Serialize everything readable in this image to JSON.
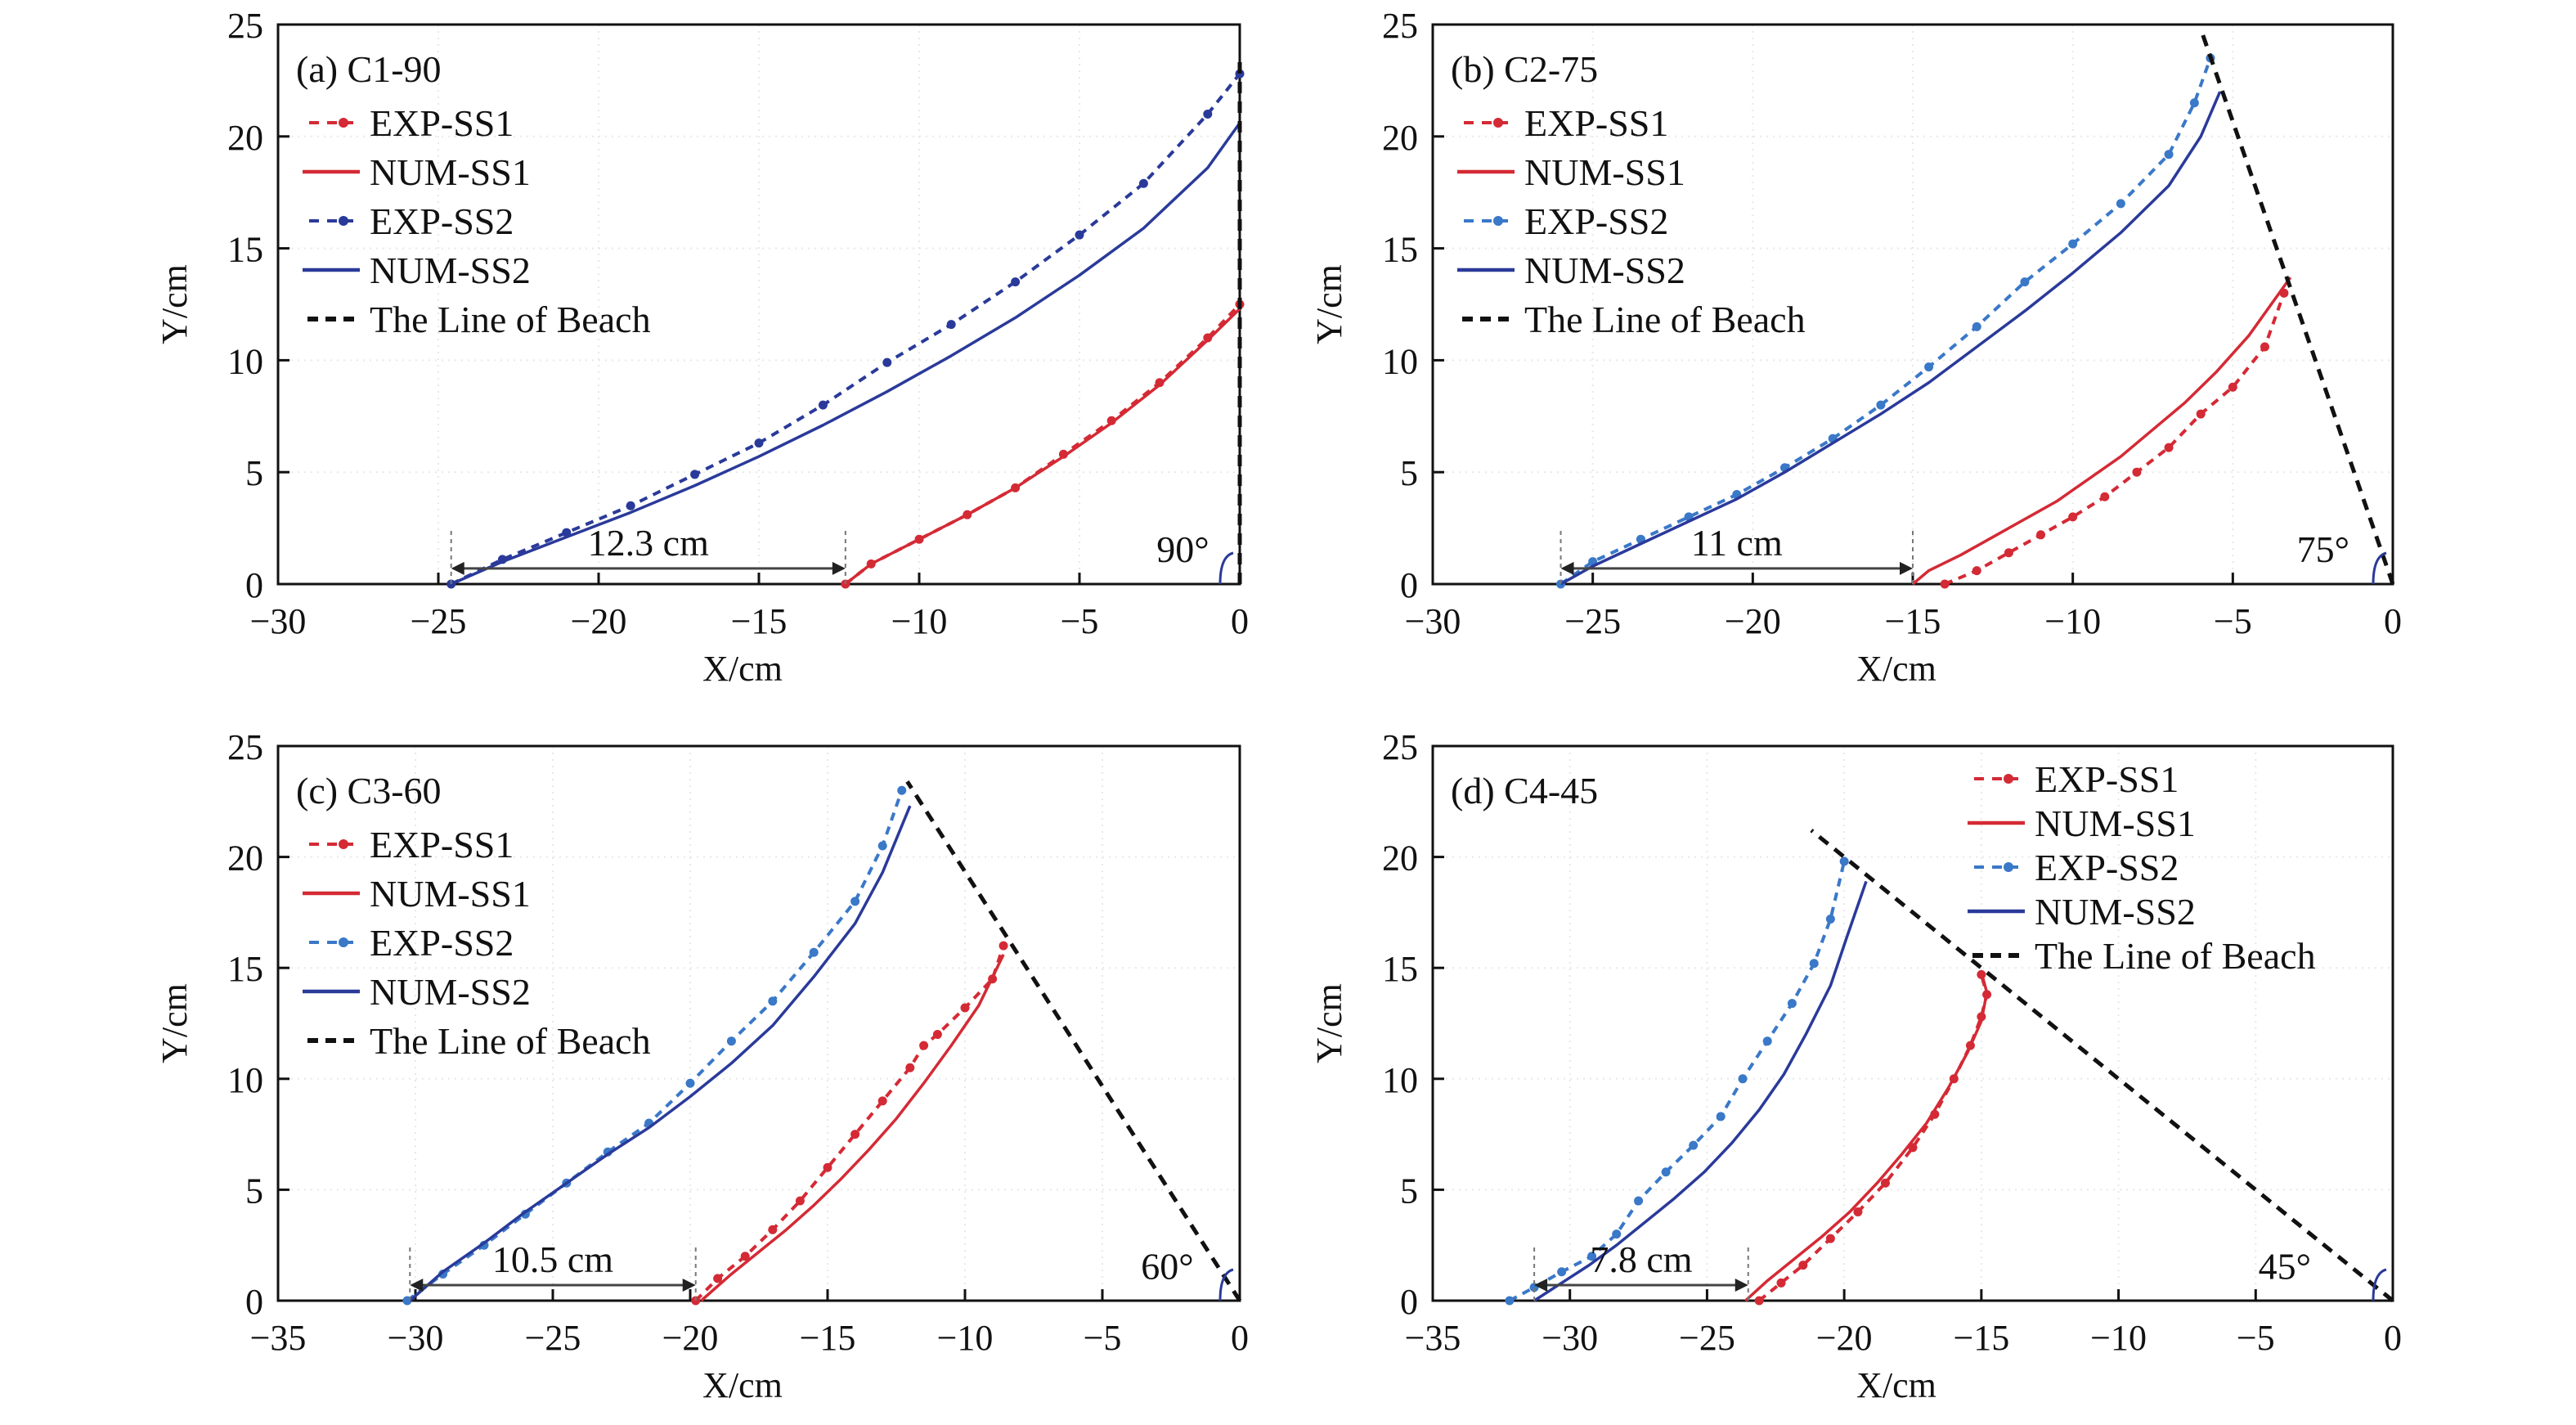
{
  "chart_data": [
    {
      "type": "line",
      "title": "(a) C1-90",
      "xlabel": "X/cm",
      "ylabel": "Y/cm",
      "xlim": [
        -30,
        0
      ],
      "ylim": [
        0,
        25
      ],
      "xticks": [
        -30,
        -25,
        -20,
        -15,
        -10,
        -5,
        0
      ],
      "yticks": [
        0,
        5,
        10,
        15,
        20,
        25
      ],
      "xtick_labels": [
        "−30",
        "−25",
        "−20",
        "−15",
        "−10",
        "−5",
        "0"
      ],
      "ytick_labels": [
        "0",
        "5",
        "10",
        "15",
        "20",
        "25"
      ],
      "legend_position": "top-left",
      "legend": [
        "EXP-SS1",
        "NUM-SS1",
        "EXP-SS2",
        "NUM-SS2",
        "The Line of Beach"
      ],
      "series": [
        {
          "name": "EXP-SS1",
          "style": "dashed-marker",
          "color": "#d42a35",
          "x": [
            -12.3,
            -11.5,
            -10,
            -8.5,
            -7,
            -5.5,
            -4,
            -2.5,
            -1,
            0
          ],
          "y": [
            0,
            0.9,
            2.0,
            3.1,
            4.3,
            5.8,
            7.3,
            9.0,
            11.0,
            12.5
          ]
        },
        {
          "name": "NUM-SS1",
          "style": "solid",
          "color": "#d42a35",
          "x": [
            -12.3,
            -11.5,
            -10,
            -8.5,
            -7,
            -5.5,
            -4,
            -2.5,
            -1,
            0
          ],
          "y": [
            0,
            0.9,
            2.0,
            3.1,
            4.3,
            5.7,
            7.2,
            8.9,
            10.9,
            12.3
          ]
        },
        {
          "name": "EXP-SS2",
          "style": "dashed-marker",
          "color": "#2a3a9a",
          "x": [
            -24.6,
            -23,
            -21,
            -19,
            -17,
            -15,
            -13,
            -11,
            -9,
            -7,
            -5,
            -3,
            -1,
            0
          ],
          "y": [
            0,
            1.1,
            2.3,
            3.5,
            4.9,
            6.3,
            8.0,
            9.9,
            11.6,
            13.5,
            15.6,
            17.9,
            21.0,
            22.8
          ]
        },
        {
          "name": "NUM-SS2",
          "style": "solid",
          "color": "#2a3a9a",
          "x": [
            -24.6,
            -23,
            -21,
            -19,
            -17,
            -15,
            -13,
            -11,
            -9,
            -7,
            -5,
            -3,
            -1,
            0
          ],
          "y": [
            0,
            1.0,
            2.1,
            3.2,
            4.4,
            5.7,
            7.1,
            8.6,
            10.2,
            11.9,
            13.8,
            15.9,
            18.6,
            20.6
          ]
        },
        {
          "name": "The Line of Beach",
          "style": "dashed",
          "color": "#111111",
          "x": [
            0,
            0
          ],
          "y": [
            0,
            23.5
          ]
        }
      ],
      "annotations": [
        {
          "text": "12.3 cm",
          "type": "dimension",
          "x_from": -24.6,
          "x_to": -12.3,
          "y": 0.7
        },
        {
          "text": "90°",
          "type": "angle",
          "x": -0.8,
          "y": 1.2
        }
      ]
    },
    {
      "type": "line",
      "title": "(b) C2-75",
      "xlabel": "X/cm",
      "ylabel": "Y/cm",
      "xlim": [
        -30,
        0
      ],
      "ylim": [
        0,
        25
      ],
      "xticks": [
        -30,
        -25,
        -20,
        -15,
        -10,
        -5,
        0
      ],
      "yticks": [
        0,
        5,
        10,
        15,
        20,
        25
      ],
      "xtick_labels": [
        "−30",
        "−25",
        "−20",
        "−15",
        "−10",
        "−5",
        "0"
      ],
      "ytick_labels": [
        "0",
        "5",
        "10",
        "15",
        "20",
        "25"
      ],
      "legend_position": "top-left",
      "legend": [
        "EXP-SS1",
        "NUM-SS1",
        "EXP-SS2",
        "NUM-SS2",
        "The Line of Beach"
      ],
      "series": [
        {
          "name": "EXP-SS1",
          "style": "dashed-marker",
          "color": "#d42a35",
          "x": [
            -14.0,
            -13,
            -12,
            -11,
            -10,
            -9,
            -8,
            -7,
            -6,
            -5,
            -4,
            -3.4
          ],
          "y": [
            0,
            0.6,
            1.4,
            2.2,
            3.0,
            3.9,
            5.0,
            6.1,
            7.6,
            8.8,
            10.6,
            13.0
          ]
        },
        {
          "name": "NUM-SS1",
          "style": "solid",
          "color": "#d42a35",
          "x": [
            -15.0,
            -14.5,
            -13.5,
            -12.5,
            -11.5,
            -10.5,
            -9.5,
            -8.5,
            -7.5,
            -6.5,
            -5.5,
            -4.5,
            -3.2
          ],
          "y": [
            0,
            0.6,
            1.3,
            2.1,
            2.9,
            3.7,
            4.7,
            5.7,
            6.9,
            8.1,
            9.5,
            11.1,
            13.7
          ]
        },
        {
          "name": "EXP-SS2",
          "style": "dashed-marker",
          "color": "#3a78c8",
          "x": [
            -26.0,
            -25,
            -23.5,
            -22,
            -20.5,
            -19,
            -17.5,
            -16,
            -14.5,
            -13,
            -11.5,
            -10,
            -8.5,
            -7,
            -6.2,
            -5.7
          ],
          "y": [
            0,
            1.0,
            2.0,
            3.0,
            4.0,
            5.2,
            6.5,
            8.0,
            9.7,
            11.5,
            13.5,
            15.2,
            17.0,
            19.2,
            21.5,
            23.5
          ]
        },
        {
          "name": "NUM-SS2",
          "style": "solid",
          "color": "#2a3a9a",
          "x": [
            -26.0,
            -25,
            -23.5,
            -22,
            -20.5,
            -19,
            -17.5,
            -16,
            -14.5,
            -13,
            -11.5,
            -10,
            -8.5,
            -7,
            -6.0,
            -5.4
          ],
          "y": [
            0,
            0.8,
            1.8,
            2.8,
            3.8,
            5.0,
            6.3,
            7.6,
            9.0,
            10.6,
            12.2,
            13.9,
            15.7,
            17.8,
            20.0,
            22.0
          ]
        },
        {
          "name": "The Line of Beach",
          "style": "dashed",
          "color": "#111111",
          "x": [
            0,
            -6.0
          ],
          "y": [
            0,
            24.8
          ]
        }
      ],
      "annotations": [
        {
          "text": "11 cm",
          "type": "dimension",
          "x_from": -26.0,
          "x_to": -15.0,
          "y": 0.7
        },
        {
          "text": "75°",
          "type": "angle",
          "x": -1.2,
          "y": 1.2
        }
      ]
    },
    {
      "type": "line",
      "title": "(c) C3-60",
      "xlabel": "X/cm",
      "ylabel": "Y/cm",
      "xlim": [
        -35,
        0
      ],
      "ylim": [
        0,
        25
      ],
      "xticks": [
        -35,
        -30,
        -25,
        -20,
        -15,
        -10,
        -5,
        0
      ],
      "yticks": [
        0,
        5,
        10,
        15,
        20,
        25
      ],
      "xtick_labels": [
        "−35",
        "−30",
        "−25",
        "−20",
        "−15",
        "−10",
        "−5",
        "0"
      ],
      "ytick_labels": [
        "0",
        "5",
        "10",
        "15",
        "20",
        "25"
      ],
      "legend_position": "top-left",
      "legend": [
        "EXP-SS1",
        "NUM-SS1",
        "EXP-SS2",
        "NUM-SS2",
        "The Line of Beach"
      ],
      "series": [
        {
          "name": "EXP-SS1",
          "style": "dashed-marker",
          "color": "#d42a35",
          "x": [
            -19.8,
            -19,
            -18,
            -17,
            -16,
            -15,
            -14,
            -13,
            -12,
            -11.5,
            -11,
            -10,
            -9,
            -8.6
          ],
          "y": [
            0,
            1.0,
            2.0,
            3.2,
            4.5,
            6.0,
            7.5,
            9.0,
            10.5,
            11.5,
            12.0,
            13.2,
            14.5,
            16.0
          ]
        },
        {
          "name": "NUM-SS1",
          "style": "solid",
          "color": "#d42a35",
          "x": [
            -19.6,
            -18.5,
            -17.5,
            -16.5,
            -15.5,
            -14.5,
            -13.5,
            -12.5,
            -11.5,
            -10.5,
            -9.5,
            -8.6
          ],
          "y": [
            0,
            1.2,
            2.2,
            3.2,
            4.3,
            5.5,
            6.8,
            8.2,
            9.8,
            11.5,
            13.3,
            15.6
          ]
        },
        {
          "name": "EXP-SS2",
          "style": "dashed-marker",
          "color": "#3a78c8",
          "x": [
            -30.3,
            -29,
            -27.5,
            -26,
            -24.5,
            -23,
            -21.5,
            -20,
            -18.5,
            -17,
            -15.5,
            -14,
            -13,
            -12.3
          ],
          "y": [
            0,
            1.2,
            2.5,
            3.9,
            5.3,
            6.7,
            8.0,
            9.8,
            11.7,
            13.5,
            15.7,
            18.0,
            20.5,
            23.0
          ]
        },
        {
          "name": "NUM-SS2",
          "style": "solid",
          "color": "#2a3a9a",
          "x": [
            -30.2,
            -29,
            -27.5,
            -26,
            -24.5,
            -23,
            -21.5,
            -20,
            -18.5,
            -17,
            -15.5,
            -14,
            -13,
            -12.0
          ],
          "y": [
            0,
            1.3,
            2.6,
            4.0,
            5.3,
            6.6,
            7.8,
            9.2,
            10.7,
            12.4,
            14.6,
            17.0,
            19.3,
            22.3
          ]
        },
        {
          "name": "The Line of Beach",
          "style": "dashed",
          "color": "#111111",
          "x": [
            0,
            -12.1
          ],
          "y": [
            0,
            23.4
          ]
        }
      ],
      "annotations": [
        {
          "text": "10.5 cm",
          "type": "dimension",
          "x_from": -30.2,
          "x_to": -19.8,
          "y": 0.7
        },
        {
          "text": "60°",
          "type": "angle",
          "x": -1.5,
          "y": 1.2
        }
      ]
    },
    {
      "type": "line",
      "title": "(d) C4-45",
      "xlabel": "X/cm",
      "ylabel": "Y/cm",
      "xlim": [
        -35,
        0
      ],
      "ylim": [
        0,
        25
      ],
      "xticks": [
        -35,
        -30,
        -25,
        -20,
        -15,
        -10,
        -5,
        0
      ],
      "yticks": [
        0,
        5,
        10,
        15,
        20,
        25
      ],
      "xtick_labels": [
        "−35",
        "−30",
        "−25",
        "−20",
        "−15",
        "−10",
        "−5",
        "0"
      ],
      "ytick_labels": [
        "0",
        "5",
        "10",
        "15",
        "20",
        "25"
      ],
      "legend_position": "top-right",
      "legend": [
        "EXP-SS1",
        "NUM-SS1",
        "EXP-SS2",
        "NUM-SS2",
        "The Line of Beach"
      ],
      "series": [
        {
          "name": "EXP-SS1",
          "style": "dashed-marker",
          "color": "#d42a35",
          "x": [
            -23.1,
            -22.3,
            -21.5,
            -20.5,
            -19.5,
            -18.5,
            -17.5,
            -16.7,
            -16.0,
            -15.4,
            -15.0,
            -14.8,
            -15.0
          ],
          "y": [
            0,
            0.8,
            1.6,
            2.8,
            4.0,
            5.3,
            6.9,
            8.4,
            10.0,
            11.5,
            12.8,
            13.8,
            14.7
          ]
        },
        {
          "name": "NUM-SS1",
          "style": "solid",
          "color": "#d42a35",
          "x": [
            -23.6,
            -22.8,
            -21.8,
            -20.8,
            -19.8,
            -18.8,
            -17.9,
            -17.0,
            -16.2,
            -15.5,
            -15.0,
            -14.8,
            -15.0
          ],
          "y": [
            0,
            0.9,
            1.9,
            2.9,
            4.0,
            5.3,
            6.6,
            8.0,
            9.6,
            11.2,
            12.6,
            13.9,
            14.8
          ]
        },
        {
          "name": "EXP-SS2",
          "style": "dashed-marker",
          "color": "#3a78c8",
          "x": [
            -32.2,
            -31.3,
            -30.3,
            -29.2,
            -28.3,
            -27.5,
            -26.5,
            -25.5,
            -24.5,
            -23.7,
            -22.8,
            -21.9,
            -21.1,
            -20.5,
            -20.0
          ],
          "y": [
            0,
            0.6,
            1.3,
            2.0,
            3.0,
            4.5,
            5.8,
            7.0,
            8.3,
            10.0,
            11.7,
            13.4,
            15.2,
            17.2,
            19.8
          ]
        },
        {
          "name": "NUM-SS2",
          "style": "solid",
          "color": "#2a3a9a",
          "x": [
            -31.3,
            -30.3,
            -29.3,
            -28.3,
            -27.3,
            -26.2,
            -25.1,
            -24.1,
            -23.1,
            -22.2,
            -21.4,
            -20.5,
            -19.9,
            -19.2
          ],
          "y": [
            0,
            0.8,
            1.6,
            2.5,
            3.5,
            4.6,
            5.8,
            7.1,
            8.6,
            10.2,
            12.0,
            14.2,
            16.4,
            18.9
          ]
        },
        {
          "name": "The Line of Beach",
          "style": "dashed",
          "color": "#111111",
          "x": [
            0,
            -21.2
          ],
          "y": [
            0,
            21.2
          ]
        }
      ],
      "annotations": [
        {
          "text": "7.8 cm",
          "type": "dimension",
          "x_from": -31.3,
          "x_to": -23.5,
          "y": 0.7
        },
        {
          "text": "45°",
          "type": "angle",
          "x": -2.8,
          "y": 1.2
        }
      ]
    }
  ]
}
